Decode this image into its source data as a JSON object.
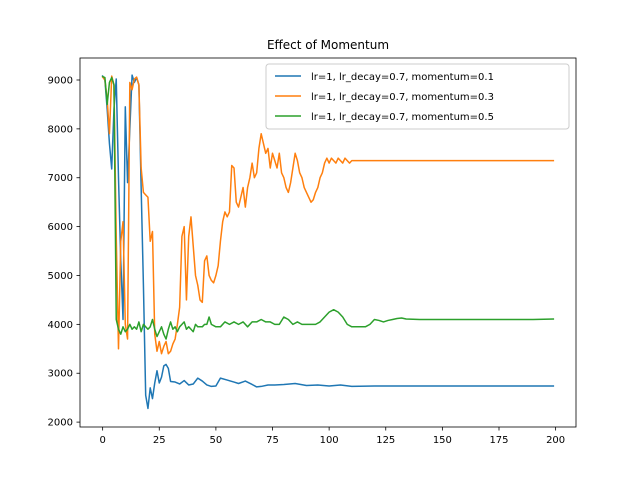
{
  "chart_data": {
    "type": "line",
    "title": "Effect of Momentum",
    "xlabel": "",
    "ylabel": "",
    "xlim": [
      -10,
      209
    ],
    "ylim": [
      1900,
      9450
    ],
    "xticks": [
      0,
      25,
      50,
      75,
      100,
      125,
      150,
      175,
      200
    ],
    "yticks": [
      2000,
      3000,
      4000,
      5000,
      6000,
      7000,
      8000,
      9000
    ],
    "grid": false,
    "legend_position": "top-right",
    "series": [
      {
        "name": "lr=1, lr_decay=0.7, momentum=0.1",
        "color": "#1f77b4",
        "points": [
          [
            0,
            9080
          ],
          [
            1,
            9000
          ],
          [
            2,
            8400
          ],
          [
            3,
            7700
          ],
          [
            4,
            7180
          ],
          [
            5,
            8400
          ],
          [
            6,
            9020
          ],
          [
            7,
            7000
          ],
          [
            8,
            5300
          ],
          [
            9,
            4100
          ],
          [
            10,
            8450
          ],
          [
            11,
            6900
          ],
          [
            12,
            8000
          ],
          [
            13,
            9100
          ],
          [
            14,
            8950
          ],
          [
            15,
            9050
          ],
          [
            16,
            8900
          ],
          [
            17,
            6800
          ],
          [
            18,
            4800
          ],
          [
            19,
            2550
          ],
          [
            20,
            2280
          ],
          [
            21,
            2700
          ],
          [
            22,
            2480
          ],
          [
            23,
            2800
          ],
          [
            24,
            3050
          ],
          [
            25,
            2800
          ],
          [
            26,
            2920
          ],
          [
            27,
            3150
          ],
          [
            28,
            3180
          ],
          [
            29,
            3100
          ],
          [
            30,
            2830
          ],
          [
            32,
            2820
          ],
          [
            34,
            2780
          ],
          [
            36,
            2850
          ],
          [
            38,
            2760
          ],
          [
            40,
            2780
          ],
          [
            42,
            2900
          ],
          [
            44,
            2840
          ],
          [
            46,
            2760
          ],
          [
            48,
            2730
          ],
          [
            50,
            2740
          ],
          [
            52,
            2900
          ],
          [
            55,
            2860
          ],
          [
            58,
            2820
          ],
          [
            60,
            2790
          ],
          [
            63,
            2840
          ],
          [
            66,
            2770
          ],
          [
            68,
            2720
          ],
          [
            70,
            2730
          ],
          [
            73,
            2760
          ],
          [
            76,
            2760
          ],
          [
            80,
            2770
          ],
          [
            85,
            2790
          ],
          [
            90,
            2750
          ],
          [
            95,
            2760
          ],
          [
            100,
            2740
          ],
          [
            105,
            2760
          ],
          [
            110,
            2730
          ],
          [
            120,
            2740
          ],
          [
            130,
            2740
          ],
          [
            150,
            2740
          ],
          [
            170,
            2740
          ],
          [
            199,
            2740
          ]
        ]
      },
      {
        "name": "lr=1, lr_decay=0.7, momentum=0.3",
        "color": "#ff7f0e",
        "points": [
          [
            0,
            9060
          ],
          [
            1,
            9000
          ],
          [
            2,
            8600
          ],
          [
            3,
            7900
          ],
          [
            4,
            9080
          ],
          [
            5,
            8900
          ],
          [
            6,
            5800
          ],
          [
            7,
            3500
          ],
          [
            8,
            5700
          ],
          [
            9,
            6100
          ],
          [
            10,
            4000
          ],
          [
            11,
            3700
          ],
          [
            12,
            8950
          ],
          [
            13,
            8800
          ],
          [
            14,
            9020
          ],
          [
            15,
            9060
          ],
          [
            16,
            8900
          ],
          [
            17,
            7200
          ],
          [
            18,
            6700
          ],
          [
            19,
            6650
          ],
          [
            20,
            6600
          ],
          [
            21,
            5700
          ],
          [
            22,
            5900
          ],
          [
            23,
            3800
          ],
          [
            24,
            3450
          ],
          [
            25,
            3650
          ],
          [
            26,
            3400
          ],
          [
            27,
            3550
          ],
          [
            28,
            3650
          ],
          [
            29,
            3400
          ],
          [
            30,
            3450
          ],
          [
            31,
            3600
          ],
          [
            32,
            3700
          ],
          [
            33,
            4000
          ],
          [
            34,
            4350
          ],
          [
            35,
            5800
          ],
          [
            36,
            6000
          ],
          [
            37,
            4500
          ],
          [
            38,
            5800
          ],
          [
            39,
            6200
          ],
          [
            40,
            5600
          ],
          [
            41,
            5000
          ],
          [
            42,
            4800
          ],
          [
            43,
            4500
          ],
          [
            44,
            4450
          ],
          [
            45,
            5300
          ],
          [
            46,
            5400
          ],
          [
            47,
            5000
          ],
          [
            48,
            4900
          ],
          [
            49,
            4850
          ],
          [
            50,
            5000
          ],
          [
            51,
            5200
          ],
          [
            52,
            5700
          ],
          [
            53,
            6100
          ],
          [
            54,
            6300
          ],
          [
            55,
            6200
          ],
          [
            56,
            6300
          ],
          [
            57,
            7250
          ],
          [
            58,
            7200
          ],
          [
            59,
            6500
          ],
          [
            60,
            6400
          ],
          [
            61,
            6600
          ],
          [
            62,
            6800
          ],
          [
            63,
            6400
          ],
          [
            64,
            6800
          ],
          [
            65,
            7000
          ],
          [
            66,
            7300
          ],
          [
            67,
            7000
          ],
          [
            68,
            7100
          ],
          [
            69,
            7600
          ],
          [
            70,
            7900
          ],
          [
            71,
            7700
          ],
          [
            72,
            7500
          ],
          [
            73,
            7600
          ],
          [
            74,
            7200
          ],
          [
            75,
            7500
          ],
          [
            76,
            7350
          ],
          [
            77,
            7200
          ],
          [
            78,
            7500
          ],
          [
            79,
            7100
          ],
          [
            80,
            7000
          ],
          [
            81,
            6800
          ],
          [
            82,
            6700
          ],
          [
            83,
            6900
          ],
          [
            84,
            7200
          ],
          [
            85,
            7500
          ],
          [
            86,
            7350
          ],
          [
            87,
            7100
          ],
          [
            88,
            7000
          ],
          [
            89,
            6800
          ],
          [
            90,
            6700
          ],
          [
            91,
            6600
          ],
          [
            92,
            6500
          ],
          [
            93,
            6550
          ],
          [
            94,
            6700
          ],
          [
            95,
            6800
          ],
          [
            96,
            7000
          ],
          [
            97,
            7100
          ],
          [
            98,
            7300
          ],
          [
            99,
            7400
          ],
          [
            100,
            7300
          ],
          [
            101,
            7400
          ],
          [
            102,
            7350
          ],
          [
            103,
            7300
          ],
          [
            104,
            7400
          ],
          [
            105,
            7350
          ],
          [
            106,
            7300
          ],
          [
            107,
            7400
          ],
          [
            108,
            7350
          ],
          [
            109,
            7300
          ],
          [
            110,
            7350
          ],
          [
            112,
            7350
          ],
          [
            115,
            7350
          ],
          [
            120,
            7350
          ],
          [
            130,
            7350
          ],
          [
            140,
            7350
          ],
          [
            150,
            7350
          ],
          [
            160,
            7350
          ],
          [
            170,
            7350
          ],
          [
            180,
            7350
          ],
          [
            190,
            7350
          ],
          [
            199,
            7350
          ]
        ]
      },
      {
        "name": "lr=1, lr_decay=0.7, momentum=0.5",
        "color": "#2ca02c",
        "points": [
          [
            0,
            9070
          ],
          [
            1,
            9050
          ],
          [
            2,
            8500
          ],
          [
            3,
            8950
          ],
          [
            4,
            9050
          ],
          [
            5,
            8900
          ],
          [
            6,
            4100
          ],
          [
            7,
            3900
          ],
          [
            8,
            3800
          ],
          [
            9,
            3950
          ],
          [
            10,
            3850
          ],
          [
            11,
            3900
          ],
          [
            12,
            4000
          ],
          [
            13,
            3900
          ],
          [
            14,
            3950
          ],
          [
            15,
            3900
          ],
          [
            16,
            4050
          ],
          [
            17,
            3850
          ],
          [
            18,
            4000
          ],
          [
            19,
            3950
          ],
          [
            20,
            3900
          ],
          [
            21,
            3950
          ],
          [
            22,
            4100
          ],
          [
            23,
            3900
          ],
          [
            24,
            3750
          ],
          [
            25,
            3850
          ],
          [
            26,
            3950
          ],
          [
            27,
            3800
          ],
          [
            28,
            3700
          ],
          [
            29,
            3900
          ],
          [
            30,
            4050
          ],
          [
            31,
            3900
          ],
          [
            32,
            3950
          ],
          [
            33,
            3850
          ],
          [
            34,
            3950
          ],
          [
            35,
            4000
          ],
          [
            36,
            4050
          ],
          [
            37,
            3900
          ],
          [
            38,
            3950
          ],
          [
            39,
            3900
          ],
          [
            40,
            3850
          ],
          [
            41,
            4000
          ],
          [
            42,
            3950
          ],
          [
            43,
            3950
          ],
          [
            44,
            3950
          ],
          [
            45,
            4000
          ],
          [
            46,
            4000
          ],
          [
            47,
            4150
          ],
          [
            48,
            4000
          ],
          [
            50,
            3950
          ],
          [
            52,
            3950
          ],
          [
            54,
            4050
          ],
          [
            56,
            4000
          ],
          [
            58,
            4050
          ],
          [
            60,
            4000
          ],
          [
            62,
            4050
          ],
          [
            64,
            3950
          ],
          [
            66,
            4050
          ],
          [
            68,
            4050
          ],
          [
            70,
            4100
          ],
          [
            72,
            4050
          ],
          [
            74,
            4050
          ],
          [
            76,
            4000
          ],
          [
            78,
            4000
          ],
          [
            80,
            4150
          ],
          [
            82,
            4100
          ],
          [
            84,
            4000
          ],
          [
            86,
            4050
          ],
          [
            88,
            4000
          ],
          [
            90,
            4000
          ],
          [
            92,
            4000
          ],
          [
            94,
            4000
          ],
          [
            96,
            4050
          ],
          [
            98,
            4150
          ],
          [
            100,
            4250
          ],
          [
            102,
            4300
          ],
          [
            104,
            4250
          ],
          [
            106,
            4150
          ],
          [
            108,
            4000
          ],
          [
            110,
            3950
          ],
          [
            112,
            3950
          ],
          [
            114,
            3950
          ],
          [
            116,
            3950
          ],
          [
            118,
            4000
          ],
          [
            120,
            4100
          ],
          [
            122,
            4080
          ],
          [
            124,
            4050
          ],
          [
            126,
            4080
          ],
          [
            128,
            4100
          ],
          [
            130,
            4120
          ],
          [
            132,
            4130
          ],
          [
            134,
            4110
          ],
          [
            140,
            4100
          ],
          [
            150,
            4100
          ],
          [
            160,
            4100
          ],
          [
            170,
            4100
          ],
          [
            180,
            4100
          ],
          [
            190,
            4100
          ],
          [
            199,
            4110
          ]
        ]
      }
    ]
  }
}
